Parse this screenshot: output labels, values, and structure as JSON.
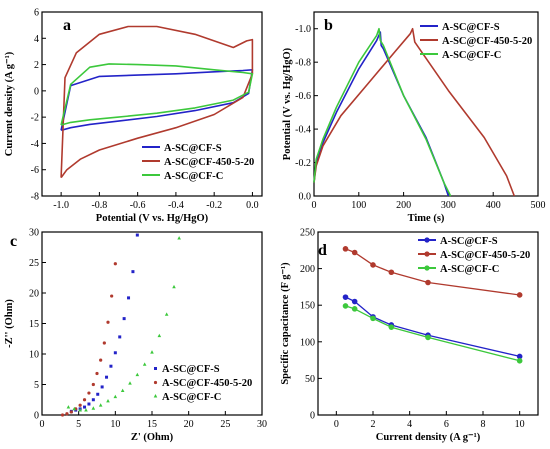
{
  "chart_data": [
    {
      "panel": "a",
      "type": "line",
      "xlabel": "Potential (V vs. Hg/HgO)",
      "ylabel": "Current density (A g⁻¹)",
      "xlim": [
        -1.1,
        0.05
      ],
      "ylim": [
        -8,
        6
      ],
      "xticks": [
        -1.0,
        -0.8,
        -0.6,
        -0.4,
        -0.2,
        0.0
      ],
      "xticklabels": [
        "-1.0",
        "-0.8",
        "-0.6",
        "-0.4",
        "-0.2",
        "0.0"
      ],
      "yticks": [
        -8,
        -6,
        -4,
        -2,
        0,
        2,
        4,
        6
      ],
      "yticklabels": [
        "-8",
        "-6",
        "-4",
        "-2",
        "0",
        "2",
        "4",
        "6"
      ],
      "legend": "bottom-right",
      "series": [
        {
          "name": "A-SC@CF-S",
          "color": "#2323c8",
          "x": [
            -1.0,
            -0.95,
            -0.85,
            -0.7,
            -0.5,
            -0.3,
            -0.1,
            -0.02,
            0.0,
            0.0,
            -0.05,
            -0.2,
            -0.4,
            -0.6,
            -0.8,
            -0.95,
            -1.0
          ],
          "y": [
            -3.0,
            -2.8,
            -2.55,
            -2.3,
            -1.95,
            -1.5,
            -0.9,
            -0.2,
            1.6,
            1.6,
            1.55,
            1.45,
            1.3,
            1.2,
            1.1,
            0.4,
            -3.0
          ]
        },
        {
          "name": "A-SC@CF-450-5-20",
          "color": "#b03a2e",
          "x": [
            -1.0,
            -0.97,
            -0.9,
            -0.8,
            -0.6,
            -0.4,
            -0.2,
            -0.05,
            0.0,
            0.0,
            -0.03,
            -0.1,
            -0.3,
            -0.5,
            -0.65,
            -0.8,
            -0.92,
            -0.98,
            -1.0
          ],
          "y": [
            -6.6,
            -6.0,
            -5.2,
            -4.5,
            -3.6,
            -2.8,
            -1.8,
            -0.5,
            1.3,
            3.9,
            3.8,
            3.3,
            4.3,
            4.9,
            4.9,
            4.3,
            2.9,
            1.0,
            -6.6
          ]
        },
        {
          "name": "A-SC@CF-C",
          "color": "#3cc83c",
          "x": [
            -1.0,
            -0.95,
            -0.85,
            -0.7,
            -0.5,
            -0.3,
            -0.1,
            -0.02,
            0.0,
            0.0,
            -0.05,
            -0.2,
            -0.4,
            -0.6,
            -0.75,
            -0.85,
            -0.95,
            -1.0
          ],
          "y": [
            -2.6,
            -2.4,
            -2.2,
            -2.0,
            -1.7,
            -1.3,
            -0.7,
            -0.1,
            1.3,
            1.3,
            1.4,
            1.6,
            1.9,
            2.0,
            2.05,
            1.8,
            0.5,
            -2.6
          ]
        }
      ]
    },
    {
      "panel": "b",
      "type": "line",
      "xlabel": "Time (s)",
      "ylabel": "Potential (V vs. Hg/HgO)",
      "xlim": [
        0,
        500
      ],
      "ylim": [
        0.0,
        -1.1
      ],
      "xticks": [
        0,
        100,
        200,
        300,
        400,
        500
      ],
      "xticklabels": [
        "0",
        "100",
        "200",
        "300",
        "400",
        "500"
      ],
      "yticks": [
        0.0,
        -0.2,
        -0.4,
        -0.6,
        -0.8,
        -1.0
      ],
      "yticklabels": [
        "0.0",
        "-0.2",
        "-0.4",
        "-0.6",
        "-0.8",
        "-1.0"
      ],
      "legend": "top-right",
      "series": [
        {
          "name": "A-SC@CF-S",
          "color": "#2323c8",
          "x": [
            0,
            5,
            20,
            50,
            100,
            140,
            148,
            150,
            155,
            200,
            250,
            290,
            300
          ],
          "y": [
            -0.08,
            -0.2,
            -0.32,
            -0.5,
            -0.76,
            -0.93,
            -0.98,
            -0.9,
            -0.88,
            -0.6,
            -0.35,
            -0.08,
            0.0
          ]
        },
        {
          "name": "A-SC@CF-450-5-20",
          "color": "#b03a2e",
          "x": [
            0,
            5,
            20,
            60,
            120,
            180,
            215,
            220,
            225,
            300,
            380,
            430,
            447
          ],
          "y": [
            -0.08,
            -0.18,
            -0.3,
            -0.48,
            -0.67,
            -0.86,
            -0.97,
            -1.0,
            -0.92,
            -0.63,
            -0.35,
            -0.12,
            0.0
          ]
        },
        {
          "name": "A-SC@CF-C",
          "color": "#3cc83c",
          "x": [
            0,
            5,
            20,
            50,
            100,
            140,
            145,
            148,
            155,
            200,
            250,
            290,
            305
          ],
          "y": [
            -0.08,
            -0.22,
            -0.34,
            -0.53,
            -0.8,
            -0.96,
            -1.0,
            -0.93,
            -0.9,
            -0.6,
            -0.34,
            -0.08,
            0.0
          ]
        }
      ]
    },
    {
      "panel": "c",
      "type": "scatter",
      "xlabel": "Z' (Ohm)",
      "ylabel": "-Z'' (Ohm)",
      "xlim": [
        0,
        30
      ],
      "ylim": [
        0,
        30
      ],
      "xticks": [
        0,
        5,
        10,
        15,
        20,
        25,
        30
      ],
      "xticklabels": [
        "0",
        "5",
        "10",
        "15",
        "20",
        "25",
        "30"
      ],
      "yticks": [
        0,
        5,
        10,
        15,
        20,
        25,
        30
      ],
      "yticklabels": [
        "0",
        "5",
        "10",
        "15",
        "20",
        "25",
        "30"
      ],
      "legend": "bottom-right",
      "series": [
        {
          "name": "A-SC@CF-S",
          "color": "#2323c8",
          "marker": "square",
          "x": [
            4.0,
            4.6,
            5.2,
            5.8,
            6.4,
            7.0,
            7.6,
            8.2,
            8.8,
            9.4,
            10.0,
            10.6,
            11.2,
            11.8,
            12.4,
            13.0
          ],
          "y": [
            0.6,
            0.8,
            1.0,
            1.3,
            1.8,
            2.5,
            3.4,
            4.6,
            6.2,
            8.0,
            10.2,
            12.8,
            15.8,
            19.2,
            23.5,
            29.5
          ]
        },
        {
          "name": "A-SC@CF-450-5-20",
          "color": "#b03a2e",
          "marker": "circle",
          "x": [
            2.8,
            3.4,
            4.0,
            4.6,
            5.2,
            5.8,
            6.4,
            7.0,
            7.5,
            8.0,
            8.5,
            9.0,
            9.5,
            10.0
          ],
          "y": [
            0.0,
            0.2,
            0.5,
            1.0,
            1.6,
            2.5,
            3.6,
            5.0,
            6.8,
            9.0,
            11.8,
            15.2,
            19.5,
            24.8
          ]
        },
        {
          "name": "A-SC@CF-C",
          "color": "#3cc83c",
          "marker": "triangle",
          "x": [
            3.6,
            4.4,
            5.2,
            6.0,
            7.0,
            8.0,
            9.0,
            10.0,
            11.0,
            12.0,
            13.0,
            14.0,
            15.0,
            16.0,
            17.0,
            18.0,
            18.7
          ],
          "y": [
            1.3,
            1.0,
            0.8,
            0.8,
            1.1,
            1.6,
            2.3,
            3.0,
            4.0,
            5.2,
            6.6,
            8.3,
            10.3,
            13.0,
            16.5,
            21.0,
            29.0
          ]
        }
      ]
    },
    {
      "panel": "d",
      "type": "line",
      "xlabel": "Current density (A g⁻¹)",
      "ylabel": "Specific capacitance (F g⁻¹)",
      "xlim": [
        -1,
        11
      ],
      "ylim": [
        0,
        250
      ],
      "xticks": [
        0,
        2,
        4,
        6,
        8,
        10
      ],
      "xticklabels": [
        "0",
        "2",
        "4",
        "6",
        "8",
        "10"
      ],
      "yticks": [
        0,
        50,
        100,
        150,
        200,
        250
      ],
      "yticklabels": [
        "0",
        "50",
        "100",
        "150",
        "200",
        "250"
      ],
      "legend": "top-right",
      "series": [
        {
          "name": "A-SC@CF-S",
          "color": "#2323c8",
          "x": [
            0.5,
            1,
            2,
            3,
            5,
            10
          ],
          "y": [
            161,
            155,
            134,
            123,
            109,
            80
          ]
        },
        {
          "name": "A-SC@CF-450-5-20",
          "color": "#b03a2e",
          "x": [
            0.5,
            1,
            2,
            3,
            5,
            10
          ],
          "y": [
            227,
            222,
            205,
            195,
            181,
            164
          ]
        },
        {
          "name": "A-SC@CF-C",
          "color": "#3cc83c",
          "x": [
            0.5,
            1,
            2,
            3,
            5,
            10
          ],
          "y": [
            149,
            145,
            132,
            120,
            106,
            74
          ]
        }
      ]
    }
  ]
}
